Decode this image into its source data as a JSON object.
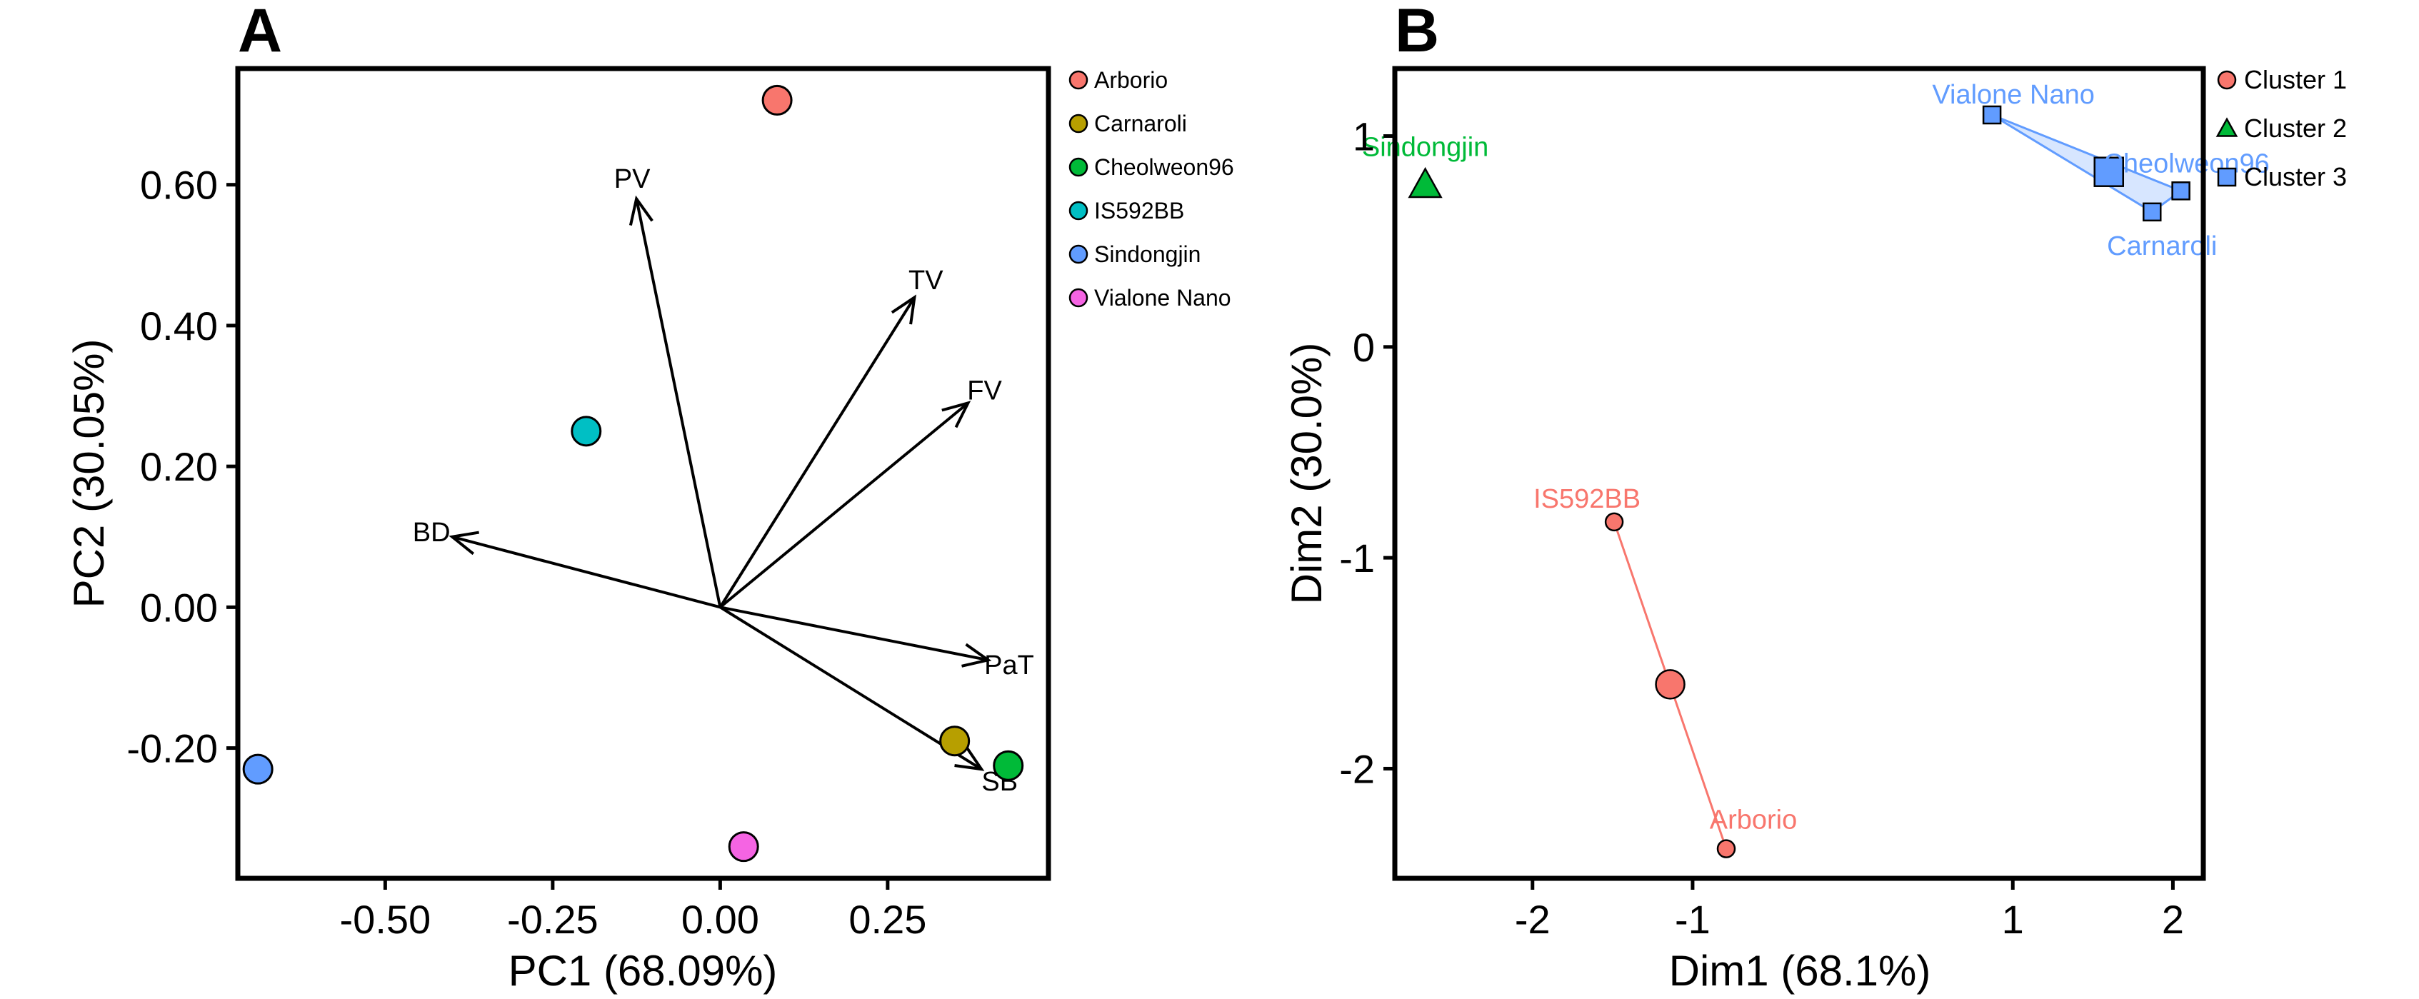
{
  "colors": {
    "arborio": "#f8766d",
    "carnaroli": "#b79f00",
    "cheolweon96": "#00ba38",
    "is592bb": "#00bfc4",
    "sindongjin": "#619cff",
    "vialone_nano": "#f564e3",
    "cluster1": "#f8766d",
    "cluster2": "#00ba38",
    "cluster3": "#619cff"
  },
  "chart_data": [
    {
      "panel": "A",
      "type": "scatter",
      "subtype": "biplot",
      "xlabel": "PC1 (68.09%)",
      "ylabel": "PC2 (30.05%)",
      "xlim": [
        -0.72,
        0.49
      ],
      "ylim": [
        -0.385,
        0.765
      ],
      "xticks": [
        -0.5,
        -0.25,
        0.0,
        0.25
      ],
      "xtick_labels": [
        "-0.50",
        "-0.25",
        "0.00",
        "0.25"
      ],
      "yticks": [
        -0.2,
        0.0,
        0.2,
        0.4,
        0.6
      ],
      "ytick_labels": [
        "-0.20",
        "0.00",
        "0.20",
        "0.40",
        "0.60"
      ],
      "legend_position": "right-outside-top",
      "points": [
        {
          "name": "Arborio",
          "x": 0.085,
          "y": 0.72,
          "color": "#f8766d"
        },
        {
          "name": "Carnaroli",
          "x": 0.35,
          "y": -0.19,
          "color": "#b79f00"
        },
        {
          "name": "Cheolweon96",
          "x": 0.43,
          "y": -0.225,
          "color": "#00ba38"
        },
        {
          "name": "IS592BB",
          "x": -0.2,
          "y": 0.25,
          "color": "#00bfc4"
        },
        {
          "name": "Sindongjin",
          "x": -0.69,
          "y": -0.23,
          "color": "#619cff"
        },
        {
          "name": "Vialone Nano",
          "x": 0.035,
          "y": -0.34,
          "color": "#f564e3"
        }
      ],
      "vectors": [
        {
          "name": "PV",
          "x": -0.125,
          "y": 0.58
        },
        {
          "name": "TV",
          "x": 0.29,
          "y": 0.44
        },
        {
          "name": "FV",
          "x": 0.37,
          "y": 0.29
        },
        {
          "name": "BD",
          "x": -0.4,
          "y": 0.1
        },
        {
          "name": "PaT",
          "x": 0.4,
          "y": -0.075
        },
        {
          "name": "SB",
          "x": 0.39,
          "y": -0.23
        }
      ]
    },
    {
      "panel": "B",
      "type": "scatter",
      "subtype": "cluster",
      "xlabel": "Dim1 (68.1%)",
      "ylabel": "Dim2 (30.0%)",
      "xlim": [
        -2.86,
        2.19
      ],
      "ylim": [
        -2.52,
        1.32
      ],
      "xticks": [
        -2,
        -1,
        1,
        2
      ],
      "xtick_labels": [
        "-2",
        "-1",
        "1",
        "2"
      ],
      "yticks": [
        -2,
        -1,
        0,
        1
      ],
      "ytick_labels": [
        "-2",
        "-1",
        "0",
        "1"
      ],
      "legend_position": "right-outside-top",
      "legend": [
        {
          "label": "Cluster 1",
          "shape": "circle",
          "color": "#f8766d"
        },
        {
          "label": "Cluster 2",
          "shape": "triangle",
          "color": "#00ba38"
        },
        {
          "label": "Cluster 3",
          "shape": "square",
          "color": "#619cff"
        }
      ],
      "points": [
        {
          "name": "Sindongjin",
          "x": -2.67,
          "y": 0.77,
          "cluster": 2
        },
        {
          "name": "Vialone Nano",
          "x": 0.87,
          "y": 1.1,
          "cluster": 3
        },
        {
          "name": "Cheolweon96",
          "x": 2.05,
          "y": 0.74,
          "cluster": 3
        },
        {
          "name": "Carnaroli",
          "x": 1.87,
          "y": 0.64,
          "cluster": 3
        },
        {
          "name": "IS592BB",
          "x": -1.49,
          "y": -0.83,
          "cluster": 1
        },
        {
          "name": "Arborio",
          "x": -0.79,
          "y": -2.38,
          "cluster": 1
        }
      ],
      "centroids": [
        {
          "cluster": 1,
          "x": -1.14,
          "y": -1.6
        },
        {
          "cluster": 3,
          "x": 1.6,
          "y": 0.83
        }
      ]
    }
  ]
}
